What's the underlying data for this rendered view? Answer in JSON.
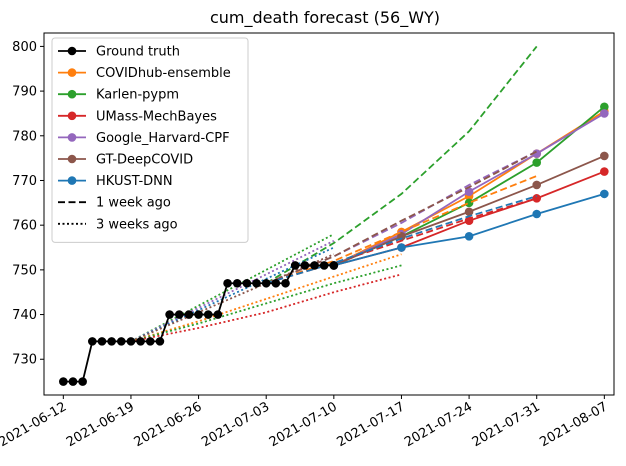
{
  "chart_data": {
    "type": "line",
    "title": "cum_death forecast (56_WY)",
    "xlabel": "",
    "ylabel": "",
    "x_ticks": [
      "2021-06-12",
      "2021-06-19",
      "2021-06-26",
      "2021-07-03",
      "2021-07-10",
      "2021-07-17",
      "2021-07-24",
      "2021-07-31",
      "2021-08-07"
    ],
    "y_ticks": [
      730,
      740,
      750,
      760,
      770,
      780,
      790,
      800
    ],
    "xlim": [
      "2021-06-10",
      "2021-08-08"
    ],
    "ylim": [
      722,
      803
    ],
    "grid": false,
    "legend_position": "top-left",
    "series": [
      {
        "name": "Ground truth",
        "color": "#000000",
        "style": "solid",
        "marker": true,
        "points": [
          [
            "2021-06-12",
            725
          ],
          [
            "2021-06-13",
            725
          ],
          [
            "2021-06-14",
            725
          ],
          [
            "2021-06-15",
            734
          ],
          [
            "2021-06-16",
            734
          ],
          [
            "2021-06-17",
            734
          ],
          [
            "2021-06-18",
            734
          ],
          [
            "2021-06-19",
            734
          ],
          [
            "2021-06-20",
            734
          ],
          [
            "2021-06-21",
            734
          ],
          [
            "2021-06-22",
            734
          ],
          [
            "2021-06-23",
            740
          ],
          [
            "2021-06-24",
            740
          ],
          [
            "2021-06-25",
            740
          ],
          [
            "2021-06-26",
            740
          ],
          [
            "2021-06-27",
            740
          ],
          [
            "2021-06-28",
            740
          ],
          [
            "2021-06-29",
            747
          ],
          [
            "2021-06-30",
            747
          ],
          [
            "2021-07-01",
            747
          ],
          [
            "2021-07-02",
            747
          ],
          [
            "2021-07-03",
            747
          ],
          [
            "2021-07-04",
            747
          ],
          [
            "2021-07-05",
            747
          ],
          [
            "2021-07-06",
            751
          ],
          [
            "2021-07-07",
            751
          ],
          [
            "2021-07-08",
            751
          ],
          [
            "2021-07-09",
            751
          ],
          [
            "2021-07-10",
            751
          ]
        ]
      },
      {
        "name": "COVIDhub-ensemble",
        "color": "#ff7f0e",
        "style": "solid",
        "marker": true,
        "points": [
          [
            "2021-07-10",
            751
          ],
          [
            "2021-07-17",
            758.5
          ],
          [
            "2021-07-24",
            766.5
          ],
          [
            "2021-07-31",
            776
          ],
          [
            "2021-08-07",
            785.5
          ]
        ]
      },
      {
        "name": "Karlen-pypm",
        "color": "#2ca02c",
        "style": "solid",
        "marker": true,
        "points": [
          [
            "2021-07-10",
            751
          ],
          [
            "2021-07-17",
            757.5
          ],
          [
            "2021-07-24",
            765
          ],
          [
            "2021-07-31",
            774
          ],
          [
            "2021-08-07",
            786.5
          ]
        ]
      },
      {
        "name": "UMass-MechBayes",
        "color": "#d62728",
        "style": "solid",
        "marker": true,
        "points": [
          [
            "2021-07-10",
            751
          ],
          [
            "2021-07-17",
            755
          ],
          [
            "2021-07-24",
            761
          ],
          [
            "2021-07-31",
            766
          ],
          [
            "2021-08-07",
            772
          ]
        ]
      },
      {
        "name": "Google_Harvard-CPF",
        "color": "#9467bd",
        "style": "solid",
        "marker": true,
        "points": [
          [
            "2021-07-10",
            751
          ],
          [
            "2021-07-17",
            758
          ],
          [
            "2021-07-24",
            767.5
          ],
          [
            "2021-07-31",
            776
          ],
          [
            "2021-08-07",
            785
          ]
        ]
      },
      {
        "name": "GT-DeepCOVID",
        "color": "#8c564b",
        "style": "solid",
        "marker": true,
        "points": [
          [
            "2021-07-10",
            751
          ],
          [
            "2021-07-17",
            757.5
          ],
          [
            "2021-07-24",
            763
          ],
          [
            "2021-07-31",
            769
          ],
          [
            "2021-08-07",
            775.5
          ]
        ]
      },
      {
        "name": "HKUST-DNN",
        "color": "#1f77b4",
        "style": "solid",
        "marker": true,
        "points": [
          [
            "2021-07-10",
            751
          ],
          [
            "2021-07-17",
            755
          ],
          [
            "2021-07-24",
            757.5
          ],
          [
            "2021-07-31",
            762.5
          ],
          [
            "2021-08-07",
            767
          ]
        ]
      },
      {
        "name": "",
        "color": "#2ca02c",
        "style": "dashed",
        "marker": false,
        "points": [
          [
            "2021-07-03",
            747
          ],
          [
            "2021-07-10",
            756
          ],
          [
            "2021-07-17",
            767
          ],
          [
            "2021-07-24",
            781
          ],
          [
            "2021-07-31",
            800
          ]
        ]
      },
      {
        "name": "",
        "color": "#ff7f0e",
        "style": "dashed",
        "marker": false,
        "points": [
          [
            "2021-07-03",
            747
          ],
          [
            "2021-07-10",
            752
          ],
          [
            "2021-07-17",
            758.5
          ],
          [
            "2021-07-24",
            765
          ],
          [
            "2021-07-31",
            771
          ]
        ]
      },
      {
        "name": "",
        "color": "#9467bd",
        "style": "dashed",
        "marker": false,
        "points": [
          [
            "2021-07-03",
            747
          ],
          [
            "2021-07-10",
            753
          ],
          [
            "2021-07-17",
            760.5
          ],
          [
            "2021-07-24",
            769
          ],
          [
            "2021-07-31",
            776.5
          ]
        ]
      },
      {
        "name": "",
        "color": "#8c564b",
        "style": "dashed",
        "marker": false,
        "points": [
          [
            "2021-07-03",
            747
          ],
          [
            "2021-07-10",
            753
          ],
          [
            "2021-07-17",
            761
          ],
          [
            "2021-07-24",
            768.5
          ],
          [
            "2021-07-31",
            776.5
          ]
        ]
      },
      {
        "name": "",
        "color": "#d62728",
        "style": "dashed",
        "marker": false,
        "points": [
          [
            "2021-07-03",
            747
          ],
          [
            "2021-07-10",
            751.5
          ],
          [
            "2021-07-17",
            756.5
          ],
          [
            "2021-07-24",
            761.5
          ],
          [
            "2021-07-31",
            766
          ]
        ]
      },
      {
        "name": "",
        "color": "#1f77b4",
        "style": "dashed",
        "marker": false,
        "points": [
          [
            "2021-07-03",
            747
          ],
          [
            "2021-07-10",
            751.5
          ],
          [
            "2021-07-17",
            757
          ],
          [
            "2021-07-24",
            762
          ],
          [
            "2021-07-31",
            766.5
          ]
        ]
      },
      {
        "name": "",
        "color": "#2ca02c",
        "style": "dotted",
        "marker": false,
        "points": [
          [
            "2021-06-19",
            734
          ],
          [
            "2021-06-26",
            742
          ],
          [
            "2021-07-03",
            750
          ],
          [
            "2021-07-10",
            758
          ]
        ]
      },
      {
        "name": "",
        "color": "#9467bd",
        "style": "dotted",
        "marker": false,
        "points": [
          [
            "2021-06-19",
            734
          ],
          [
            "2021-06-26",
            741.5
          ],
          [
            "2021-07-03",
            749
          ],
          [
            "2021-07-10",
            756.5
          ]
        ]
      },
      {
        "name": "",
        "color": "#1f77b4",
        "style": "dotted",
        "marker": false,
        "points": [
          [
            "2021-06-19",
            734
          ],
          [
            "2021-06-26",
            741
          ],
          [
            "2021-07-03",
            748
          ],
          [
            "2021-07-10",
            755
          ]
        ]
      },
      {
        "name": "",
        "color": "#8c564b",
        "style": "dotted",
        "marker": false,
        "points": [
          [
            "2021-06-19",
            734
          ],
          [
            "2021-06-26",
            740.5
          ],
          [
            "2021-07-03",
            747
          ],
          [
            "2021-07-10",
            753.5
          ]
        ]
      },
      {
        "name": "",
        "color": "#ff7f0e",
        "style": "dotted",
        "marker": false,
        "points": [
          [
            "2021-06-19",
            734
          ],
          [
            "2021-06-26",
            738.5
          ],
          [
            "2021-07-03",
            743.5
          ],
          [
            "2021-07-10",
            748.5
          ],
          [
            "2021-07-17",
            753.5
          ]
        ]
      },
      {
        "name": "",
        "color": "#2ca02c",
        "style": "dotted",
        "marker": false,
        "points": [
          [
            "2021-06-19",
            734
          ],
          [
            "2021-06-26",
            738
          ],
          [
            "2021-07-03",
            742.5
          ],
          [
            "2021-07-10",
            747
          ],
          [
            "2021-07-17",
            751
          ]
        ]
      },
      {
        "name": "",
        "color": "#d62728",
        "style": "dotted",
        "marker": false,
        "points": [
          [
            "2021-06-19",
            734
          ],
          [
            "2021-06-26",
            737
          ],
          [
            "2021-07-03",
            740.5
          ],
          [
            "2021-07-10",
            745
          ],
          [
            "2021-07-17",
            749
          ]
        ]
      }
    ],
    "legend": [
      {
        "label": "Ground truth",
        "color": "#000000",
        "style": "solid",
        "marker": true
      },
      {
        "label": "COVIDhub-ensemble",
        "color": "#ff7f0e",
        "style": "solid",
        "marker": true
      },
      {
        "label": "Karlen-pypm",
        "color": "#2ca02c",
        "style": "solid",
        "marker": true
      },
      {
        "label": "UMass-MechBayes",
        "color": "#d62728",
        "style": "solid",
        "marker": true
      },
      {
        "label": "Google_Harvard-CPF",
        "color": "#9467bd",
        "style": "solid",
        "marker": true
      },
      {
        "label": "GT-DeepCOVID",
        "color": "#8c564b",
        "style": "solid",
        "marker": true
      },
      {
        "label": "HKUST-DNN",
        "color": "#1f77b4",
        "style": "solid",
        "marker": true
      },
      {
        "label": "1 week ago",
        "color": "#000000",
        "style": "dashed",
        "marker": false
      },
      {
        "label": "3 weeks ago",
        "color": "#000000",
        "style": "dotted",
        "marker": false
      }
    ]
  }
}
